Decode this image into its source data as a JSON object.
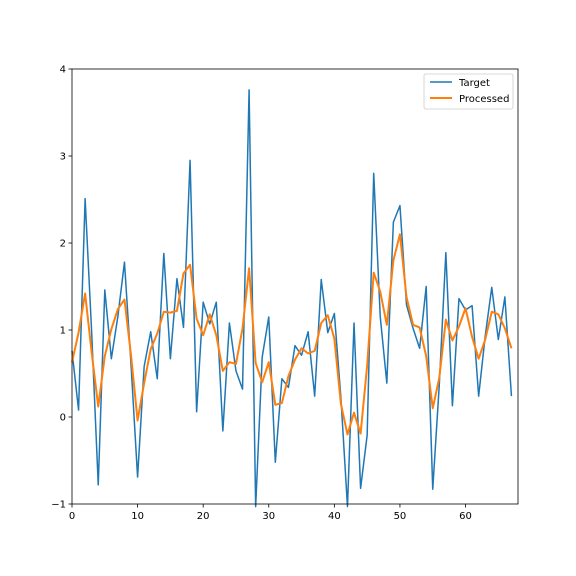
{
  "chart_data": {
    "type": "line",
    "title": "",
    "xlabel": "",
    "ylabel": "",
    "xlim": [
      0,
      68
    ],
    "ylim": [
      -1,
      4
    ],
    "xticks": [
      0,
      10,
      20,
      30,
      40,
      50,
      60
    ],
    "yticks": [
      -1,
      0,
      1,
      2,
      3,
      4
    ],
    "grid": false,
    "legend_position": "upper-right",
    "series": [
      {
        "name": "Target",
        "color": "#1f77b4",
        "x": [
          0,
          1,
          2,
          3,
          4,
          5,
          6,
          7,
          8,
          9,
          10,
          11,
          12,
          13,
          14,
          15,
          16,
          17,
          18,
          19,
          20,
          21,
          22,
          23,
          24,
          25,
          26,
          27,
          28,
          29,
          30,
          31,
          32,
          33,
          34,
          35,
          36,
          37,
          38,
          39,
          40,
          41,
          42,
          43,
          44,
          45,
          46,
          47,
          48,
          49,
          50,
          51,
          52,
          53,
          54,
          55,
          56,
          57,
          58,
          59,
          60,
          61,
          62,
          63,
          64,
          65,
          66,
          67
        ],
        "values": [
          0.76,
          0.08,
          2.51,
          0.97,
          -0.78,
          1.46,
          0.67,
          1.16,
          1.78,
          0.6,
          -0.69,
          0.58,
          0.98,
          0.44,
          1.88,
          0.67,
          1.59,
          1.03,
          2.95,
          0.06,
          1.32,
          1.07,
          1.32,
          -0.16,
          1.08,
          0.53,
          0.32,
          3.76,
          -1.03,
          0.69,
          1.15,
          -0.52,
          0.44,
          0.34,
          0.82,
          0.71,
          0.98,
          0.24,
          1.58,
          0.97,
          1.19,
          0.22,
          -1.03,
          1.08,
          -0.82,
          -0.21,
          2.8,
          1.15,
          0.39,
          2.24,
          2.43,
          1.29,
          1.02,
          0.79,
          1.5,
          -0.83,
          0.37,
          1.89,
          0.13,
          1.36,
          1.23,
          1.28,
          0.24,
          0.93,
          1.49,
          0.89,
          1.38,
          0.24
        ]
      },
      {
        "name": "Processed",
        "color": "#ff7f0e",
        "x": [
          0,
          1,
          2,
          3,
          4,
          5,
          6,
          7,
          8,
          9,
          10,
          11,
          12,
          13,
          14,
          15,
          16,
          17,
          18,
          19,
          20,
          21,
          22,
          23,
          24,
          25,
          26,
          27,
          28,
          29,
          30,
          31,
          32,
          33,
          34,
          35,
          36,
          37,
          38,
          39,
          40,
          41,
          42,
          43,
          44,
          45,
          46,
          47,
          48,
          49,
          50,
          51,
          52,
          53,
          54,
          55,
          56,
          57,
          58,
          59,
          60,
          61,
          62,
          63,
          64,
          65,
          66,
          67
        ],
        "values": [
          0.63,
          0.97,
          1.42,
          0.74,
          0.12,
          0.7,
          1.01,
          1.24,
          1.35,
          0.71,
          -0.04,
          0.39,
          0.78,
          0.96,
          1.21,
          1.2,
          1.22,
          1.65,
          1.75,
          1.13,
          0.94,
          1.18,
          0.94,
          0.53,
          0.63,
          0.61,
          1.02,
          1.71,
          0.62,
          0.4,
          0.63,
          0.14,
          0.16,
          0.47,
          0.66,
          0.79,
          0.73,
          0.76,
          1.08,
          1.17,
          0.9,
          0.15,
          -0.2,
          0.05,
          -0.19,
          0.59,
          1.66,
          1.44,
          1.06,
          1.8,
          2.1,
          1.38,
          1.06,
          1.03,
          0.7,
          0.1,
          0.45,
          1.12,
          0.88,
          1.04,
          1.25,
          0.92,
          0.67,
          0.89,
          1.21,
          1.18,
          1.02,
          0.79
        ]
      }
    ]
  }
}
